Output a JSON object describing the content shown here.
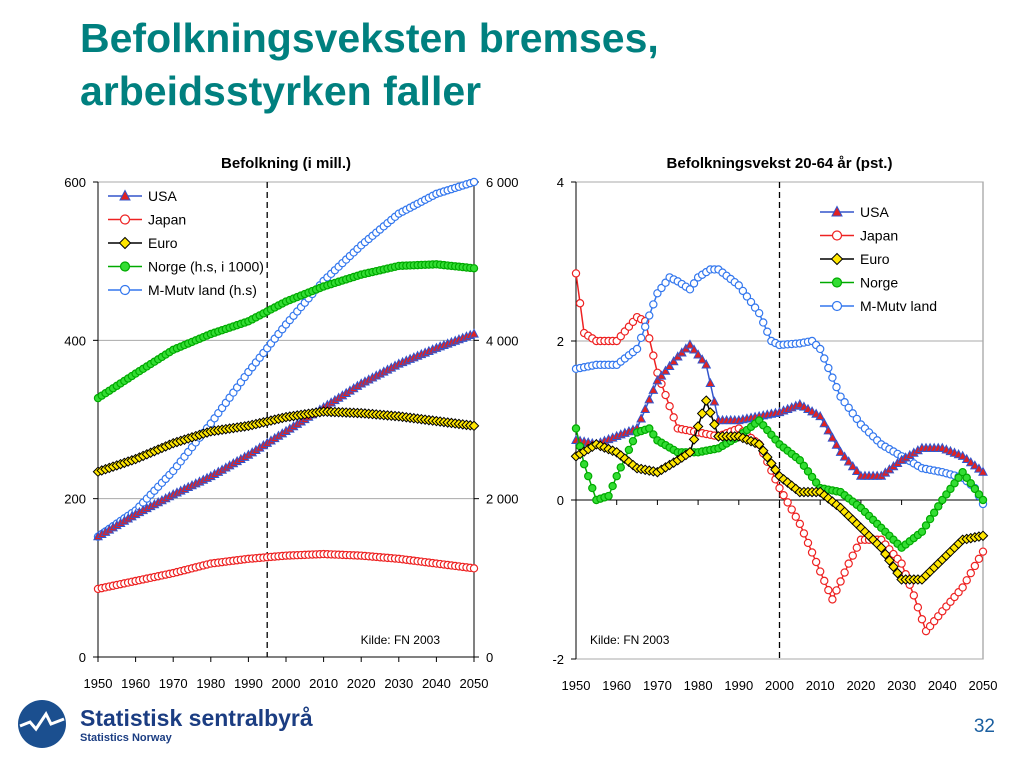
{
  "slide": {
    "title_line1": "Befolkningsveksten bremses,",
    "title_line2": "arbeidsstyrken faller",
    "page_number": "32"
  },
  "footer": {
    "logo_name": "Statistisk sentralbyrå",
    "logo_sub": "Statistics Norway"
  },
  "colors": {
    "title": "#00807f",
    "USA": "#3355cc",
    "USA_fill": "#e02222",
    "Japan": "#ee2222",
    "Euro": "#000000",
    "Euro_fill": "#ffe600",
    "Norge": "#00aa00",
    "Norge_fill": "#33dd33",
    "M-Mutv": "#3377ee"
  },
  "chart_data": [
    {
      "type": "line",
      "title": "Befolkning (i mill.)",
      "x_ticks": [
        "1950",
        "1960",
        "1970",
        "1980",
        "1990",
        "2000",
        "2010",
        "2020",
        "2030",
        "2040",
        "2050"
      ],
      "y_left_ticks": [
        "0",
        "200",
        "400",
        "600"
      ],
      "y_right_ticks": [
        "0",
        "2 000",
        "4 000",
        "6 000"
      ],
      "ylim_left": [
        0,
        600
      ],
      "ylim_right": [
        0,
        6000
      ],
      "xlim": [
        1950,
        2050
      ],
      "vline_x": 1995,
      "grid": "horizontal",
      "legend_position": "top-left",
      "annotation": "Kilde: FN 2003",
      "series": [
        {
          "name": "USA",
          "axis": "left",
          "marker": "triangle",
          "x": [
            1950,
            1960,
            1970,
            1980,
            1990,
            2000,
            2010,
            2020,
            2030,
            2040,
            2050
          ],
          "y": [
            152,
            180,
            205,
            228,
            255,
            285,
            315,
            345,
            370,
            390,
            408
          ]
        },
        {
          "name": "Japan",
          "axis": "left",
          "marker": "circle",
          "x": [
            1950,
            1960,
            1970,
            1980,
            1990,
            2000,
            2010,
            2020,
            2030,
            2040,
            2050
          ],
          "y": [
            86,
            96,
            106,
            118,
            124,
            128,
            130,
            128,
            124,
            118,
            112
          ]
        },
        {
          "name": "Euro",
          "axis": "left",
          "marker": "diamond",
          "x": [
            1950,
            1960,
            1970,
            1980,
            1990,
            2000,
            2010,
            2020,
            2030,
            2040,
            2050
          ],
          "y": [
            234,
            250,
            270,
            285,
            292,
            303,
            310,
            308,
            304,
            298,
            292
          ]
        },
        {
          "name": "Norge (h.s, i 1000)",
          "axis": "right",
          "marker": "circle-filled",
          "x": [
            1950,
            1960,
            1970,
            1980,
            1990,
            2000,
            2010,
            2020,
            2030,
            2040,
            2050
          ],
          "y": [
            3270,
            3580,
            3880,
            4080,
            4240,
            4490,
            4680,
            4830,
            4940,
            4960,
            4910
          ]
        },
        {
          "name": "M-Mutv land (h.s)",
          "axis": "right",
          "marker": "circle",
          "x": [
            1950,
            1960,
            1970,
            1980,
            1990,
            2000,
            2010,
            2020,
            2030,
            2040,
            2050
          ],
          "y": [
            1520,
            1850,
            2350,
            2950,
            3600,
            4200,
            4750,
            5200,
            5600,
            5850,
            6000
          ]
        }
      ]
    },
    {
      "type": "line",
      "title": "Befolkningsvekst 20-64 år (pst.)",
      "x_ticks": [
        "1950",
        "1960",
        "1970",
        "1980",
        "1990",
        "2000",
        "2010",
        "2020",
        "2030",
        "2040",
        "2050"
      ],
      "y_ticks": [
        "-2",
        "0",
        "2",
        "4"
      ],
      "ylim": [
        -2,
        4
      ],
      "xlim": [
        1950,
        2050
      ],
      "vline_x": 2000,
      "grid": "horizontal",
      "legend_position": "top-right",
      "annotation": "Kilde: FN 2003",
      "series": [
        {
          "name": "USA",
          "marker": "triangle",
          "x": [
            1950,
            1955,
            1960,
            1965,
            1970,
            1975,
            1978,
            1982,
            1985,
            1990,
            1995,
            2000,
            2005,
            2010,
            2015,
            2020,
            2025,
            2030,
            2035,
            2040,
            2045,
            2050
          ],
          "y": [
            0.75,
            0.7,
            0.8,
            0.9,
            1.5,
            1.8,
            1.95,
            1.7,
            1.0,
            1.0,
            1.05,
            1.1,
            1.2,
            1.05,
            0.6,
            0.3,
            0.3,
            0.5,
            0.65,
            0.65,
            0.55,
            0.35
          ]
        },
        {
          "name": "Japan",
          "marker": "circle",
          "x": [
            1950,
            1952,
            1955,
            1960,
            1965,
            1967,
            1970,
            1975,
            1980,
            1985,
            1990,
            1995,
            2000,
            2005,
            2010,
            2013,
            2017,
            2020,
            2025,
            2030,
            2033,
            2036,
            2040,
            2045,
            2050
          ],
          "y": [
            2.85,
            2.1,
            2.0,
            2.0,
            2.3,
            2.25,
            1.6,
            0.9,
            0.85,
            0.8,
            0.9,
            0.7,
            0.15,
            -0.3,
            -0.9,
            -1.25,
            -0.8,
            -0.5,
            -0.5,
            -0.8,
            -1.2,
            -1.65,
            -1.4,
            -1.1,
            -0.65
          ]
        },
        {
          "name": "Euro",
          "marker": "diamond",
          "x": [
            1950,
            1955,
            1960,
            1965,
            1970,
            1975,
            1978,
            1982,
            1985,
            1990,
            1995,
            2000,
            2005,
            2010,
            2015,
            2020,
            2025,
            2030,
            2035,
            2040,
            2045,
            2050
          ],
          "y": [
            0.55,
            0.7,
            0.6,
            0.4,
            0.35,
            0.5,
            0.6,
            1.25,
            0.8,
            0.8,
            0.7,
            0.3,
            0.1,
            0.1,
            -0.1,
            -0.35,
            -0.6,
            -1.0,
            -1.0,
            -0.75,
            -0.5,
            -0.45
          ]
        },
        {
          "name": "Norge",
          "marker": "circle-filled",
          "x": [
            1950,
            1952,
            1955,
            1958,
            1960,
            1965,
            1968,
            1970,
            1975,
            1980,
            1985,
            1990,
            1995,
            2000,
            2005,
            2010,
            2015,
            2020,
            2025,
            2030,
            2035,
            2040,
            2045,
            2050
          ],
          "y": [
            0.9,
            0.45,
            0.0,
            0.05,
            0.3,
            0.85,
            0.9,
            0.75,
            0.6,
            0.6,
            0.65,
            0.8,
            1.0,
            0.7,
            0.5,
            0.15,
            0.1,
            -0.1,
            -0.35,
            -0.6,
            -0.4,
            0.0,
            0.35,
            0.0
          ]
        },
        {
          "name": "M-Mutv land",
          "marker": "circle",
          "x": [
            1950,
            1955,
            1960,
            1965,
            1970,
            1973,
            1975,
            1978,
            1980,
            1983,
            1985,
            1990,
            1995,
            1998,
            2000,
            2005,
            2008,
            2010,
            2015,
            2020,
            2025,
            2030,
            2035,
            2040,
            2045,
            2048,
            2050
          ],
          "y": [
            1.65,
            1.7,
            1.7,
            1.9,
            2.6,
            2.8,
            2.75,
            2.65,
            2.8,
            2.9,
            2.9,
            2.7,
            2.35,
            2.0,
            1.95,
            1.97,
            2.0,
            1.9,
            1.3,
            0.95,
            0.7,
            0.55,
            0.4,
            0.35,
            0.28,
            0.15,
            -0.05
          ]
        }
      ]
    }
  ]
}
